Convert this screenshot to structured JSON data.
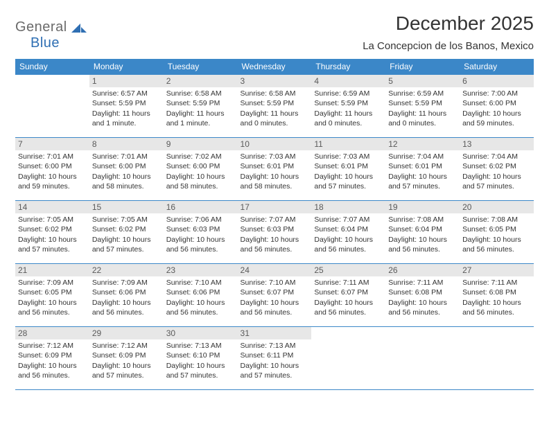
{
  "brand": {
    "part1": "General",
    "part2": "Blue"
  },
  "title": "December 2025",
  "location": "La Concepcion de los Banos, Mexico",
  "colors": {
    "header_bg": "#3b87c8",
    "header_fg": "#ffffff",
    "rule": "#3b87c8",
    "daynum_bg": "#e7e7e7",
    "text": "#333333",
    "logo_gray": "#6a6a6a",
    "logo_blue": "#2f6fb3",
    "page_bg": "#ffffff"
  },
  "day_headers": [
    "Sunday",
    "Monday",
    "Tuesday",
    "Wednesday",
    "Thursday",
    "Friday",
    "Saturday"
  ],
  "weeks": [
    [
      {
        "n": "",
        "sr": "",
        "ss": "",
        "d1": "",
        "d2": "",
        "empty": true
      },
      {
        "n": "1",
        "sr": "Sunrise: 6:57 AM",
        "ss": "Sunset: 5:59 PM",
        "d1": "Daylight: 11 hours",
        "d2": "and 1 minute."
      },
      {
        "n": "2",
        "sr": "Sunrise: 6:58 AM",
        "ss": "Sunset: 5:59 PM",
        "d1": "Daylight: 11 hours",
        "d2": "and 1 minute."
      },
      {
        "n": "3",
        "sr": "Sunrise: 6:58 AM",
        "ss": "Sunset: 5:59 PM",
        "d1": "Daylight: 11 hours",
        "d2": "and 0 minutes."
      },
      {
        "n": "4",
        "sr": "Sunrise: 6:59 AM",
        "ss": "Sunset: 5:59 PM",
        "d1": "Daylight: 11 hours",
        "d2": "and 0 minutes."
      },
      {
        "n": "5",
        "sr": "Sunrise: 6:59 AM",
        "ss": "Sunset: 5:59 PM",
        "d1": "Daylight: 11 hours",
        "d2": "and 0 minutes."
      },
      {
        "n": "6",
        "sr": "Sunrise: 7:00 AM",
        "ss": "Sunset: 6:00 PM",
        "d1": "Daylight: 10 hours",
        "d2": "and 59 minutes."
      }
    ],
    [
      {
        "n": "7",
        "sr": "Sunrise: 7:01 AM",
        "ss": "Sunset: 6:00 PM",
        "d1": "Daylight: 10 hours",
        "d2": "and 59 minutes."
      },
      {
        "n": "8",
        "sr": "Sunrise: 7:01 AM",
        "ss": "Sunset: 6:00 PM",
        "d1": "Daylight: 10 hours",
        "d2": "and 58 minutes."
      },
      {
        "n": "9",
        "sr": "Sunrise: 7:02 AM",
        "ss": "Sunset: 6:00 PM",
        "d1": "Daylight: 10 hours",
        "d2": "and 58 minutes."
      },
      {
        "n": "10",
        "sr": "Sunrise: 7:03 AM",
        "ss": "Sunset: 6:01 PM",
        "d1": "Daylight: 10 hours",
        "d2": "and 58 minutes."
      },
      {
        "n": "11",
        "sr": "Sunrise: 7:03 AM",
        "ss": "Sunset: 6:01 PM",
        "d1": "Daylight: 10 hours",
        "d2": "and 57 minutes."
      },
      {
        "n": "12",
        "sr": "Sunrise: 7:04 AM",
        "ss": "Sunset: 6:01 PM",
        "d1": "Daylight: 10 hours",
        "d2": "and 57 minutes."
      },
      {
        "n": "13",
        "sr": "Sunrise: 7:04 AM",
        "ss": "Sunset: 6:02 PM",
        "d1": "Daylight: 10 hours",
        "d2": "and 57 minutes."
      }
    ],
    [
      {
        "n": "14",
        "sr": "Sunrise: 7:05 AM",
        "ss": "Sunset: 6:02 PM",
        "d1": "Daylight: 10 hours",
        "d2": "and 57 minutes."
      },
      {
        "n": "15",
        "sr": "Sunrise: 7:05 AM",
        "ss": "Sunset: 6:02 PM",
        "d1": "Daylight: 10 hours",
        "d2": "and 57 minutes."
      },
      {
        "n": "16",
        "sr": "Sunrise: 7:06 AM",
        "ss": "Sunset: 6:03 PM",
        "d1": "Daylight: 10 hours",
        "d2": "and 56 minutes."
      },
      {
        "n": "17",
        "sr": "Sunrise: 7:07 AM",
        "ss": "Sunset: 6:03 PM",
        "d1": "Daylight: 10 hours",
        "d2": "and 56 minutes."
      },
      {
        "n": "18",
        "sr": "Sunrise: 7:07 AM",
        "ss": "Sunset: 6:04 PM",
        "d1": "Daylight: 10 hours",
        "d2": "and 56 minutes."
      },
      {
        "n": "19",
        "sr": "Sunrise: 7:08 AM",
        "ss": "Sunset: 6:04 PM",
        "d1": "Daylight: 10 hours",
        "d2": "and 56 minutes."
      },
      {
        "n": "20",
        "sr": "Sunrise: 7:08 AM",
        "ss": "Sunset: 6:05 PM",
        "d1": "Daylight: 10 hours",
        "d2": "and 56 minutes."
      }
    ],
    [
      {
        "n": "21",
        "sr": "Sunrise: 7:09 AM",
        "ss": "Sunset: 6:05 PM",
        "d1": "Daylight: 10 hours",
        "d2": "and 56 minutes."
      },
      {
        "n": "22",
        "sr": "Sunrise: 7:09 AM",
        "ss": "Sunset: 6:06 PM",
        "d1": "Daylight: 10 hours",
        "d2": "and 56 minutes."
      },
      {
        "n": "23",
        "sr": "Sunrise: 7:10 AM",
        "ss": "Sunset: 6:06 PM",
        "d1": "Daylight: 10 hours",
        "d2": "and 56 minutes."
      },
      {
        "n": "24",
        "sr": "Sunrise: 7:10 AM",
        "ss": "Sunset: 6:07 PM",
        "d1": "Daylight: 10 hours",
        "d2": "and 56 minutes."
      },
      {
        "n": "25",
        "sr": "Sunrise: 7:11 AM",
        "ss": "Sunset: 6:07 PM",
        "d1": "Daylight: 10 hours",
        "d2": "and 56 minutes."
      },
      {
        "n": "26",
        "sr": "Sunrise: 7:11 AM",
        "ss": "Sunset: 6:08 PM",
        "d1": "Daylight: 10 hours",
        "d2": "and 56 minutes."
      },
      {
        "n": "27",
        "sr": "Sunrise: 7:11 AM",
        "ss": "Sunset: 6:08 PM",
        "d1": "Daylight: 10 hours",
        "d2": "and 56 minutes."
      }
    ],
    [
      {
        "n": "28",
        "sr": "Sunrise: 7:12 AM",
        "ss": "Sunset: 6:09 PM",
        "d1": "Daylight: 10 hours",
        "d2": "and 56 minutes."
      },
      {
        "n": "29",
        "sr": "Sunrise: 7:12 AM",
        "ss": "Sunset: 6:09 PM",
        "d1": "Daylight: 10 hours",
        "d2": "and 57 minutes."
      },
      {
        "n": "30",
        "sr": "Sunrise: 7:13 AM",
        "ss": "Sunset: 6:10 PM",
        "d1": "Daylight: 10 hours",
        "d2": "and 57 minutes."
      },
      {
        "n": "31",
        "sr": "Sunrise: 7:13 AM",
        "ss": "Sunset: 6:11 PM",
        "d1": "Daylight: 10 hours",
        "d2": "and 57 minutes."
      },
      {
        "n": "",
        "sr": "",
        "ss": "",
        "d1": "",
        "d2": "",
        "empty": true
      },
      {
        "n": "",
        "sr": "",
        "ss": "",
        "d1": "",
        "d2": "",
        "empty": true
      },
      {
        "n": "",
        "sr": "",
        "ss": "",
        "d1": "",
        "d2": "",
        "empty": true
      }
    ]
  ]
}
